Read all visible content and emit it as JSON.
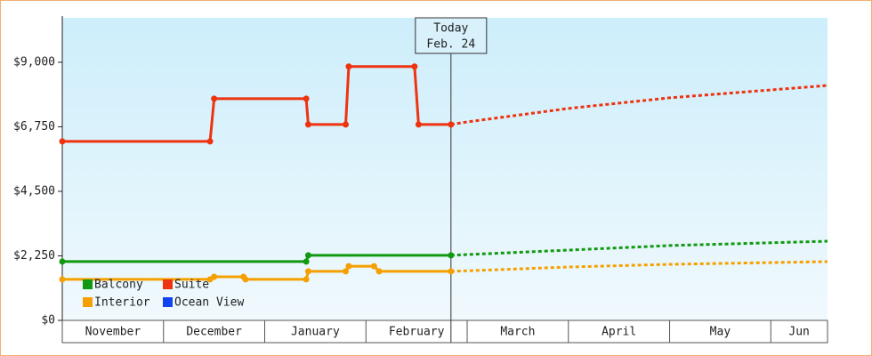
{
  "chart_data": {
    "type": "line",
    "ylim": [
      0,
      10550
    ],
    "yticks": [
      {
        "value": 0,
        "label": "$0"
      },
      {
        "value": 2250,
        "label": "$2,250"
      },
      {
        "value": 4500,
        "label": "$4,500"
      },
      {
        "value": 6750,
        "label": "$6,750"
      },
      {
        "value": 9000,
        "label": "$9,000"
      }
    ],
    "xlim": [
      0,
      7.56
    ],
    "xticks": [
      {
        "value": 0,
        "label": "November"
      },
      {
        "value": 1,
        "label": "December"
      },
      {
        "value": 2,
        "label": "January"
      },
      {
        "value": 3,
        "label": "February"
      },
      {
        "value": 4,
        "label": "March"
      },
      {
        "value": 5,
        "label": "April"
      },
      {
        "value": 6,
        "label": "May"
      },
      {
        "value": 7,
        "label": "Jun"
      }
    ],
    "today": {
      "x": 3.84,
      "label": "Today",
      "date": "Feb. 24"
    },
    "series": [
      {
        "name": "Balcony",
        "color": "#119911",
        "history": {
          "x": [
            0,
            2.41,
            2.43,
            3.84
          ],
          "values": [
            2050,
            2050,
            2270,
            2270
          ]
        },
        "forecast": {
          "x": [
            3.84,
            5.0,
            6.0,
            7.56
          ],
          "values": [
            2270,
            2450,
            2610,
            2760
          ]
        }
      },
      {
        "name": "Suite",
        "color": "#ee3311",
        "history": {
          "x": [
            0,
            1.46,
            1.5,
            2.41,
            2.43,
            2.8,
            2.83,
            3.48,
            3.52,
            3.84
          ],
          "values": [
            6240,
            6240,
            7730,
            7730,
            6830,
            6830,
            8850,
            8850,
            6830,
            6830
          ]
        },
        "forecast": {
          "x": [
            3.84,
            4.0,
            5.0,
            6.0,
            7.56
          ],
          "values": [
            6830,
            6920,
            7390,
            7760,
            8190
          ]
        }
      },
      {
        "name": "Interior",
        "color": "#f5a000",
        "history": {
          "x": [
            0,
            1.46,
            1.5,
            1.79,
            1.81,
            2.41,
            2.43,
            2.8,
            2.83,
            3.08,
            3.13,
            3.84
          ],
          "values": [
            1430,
            1430,
            1520,
            1520,
            1430,
            1430,
            1710,
            1710,
            1890,
            1890,
            1710,
            1710
          ]
        },
        "forecast": {
          "x": [
            3.84,
            5.0,
            6.0,
            7.56
          ],
          "values": [
            1710,
            1860,
            1955,
            2050
          ]
        }
      },
      {
        "name": "Ocean View",
        "color": "#1144ee",
        "history": {
          "x": [],
          "values": []
        },
        "forecast": {
          "x": [],
          "values": []
        }
      }
    ]
  }
}
